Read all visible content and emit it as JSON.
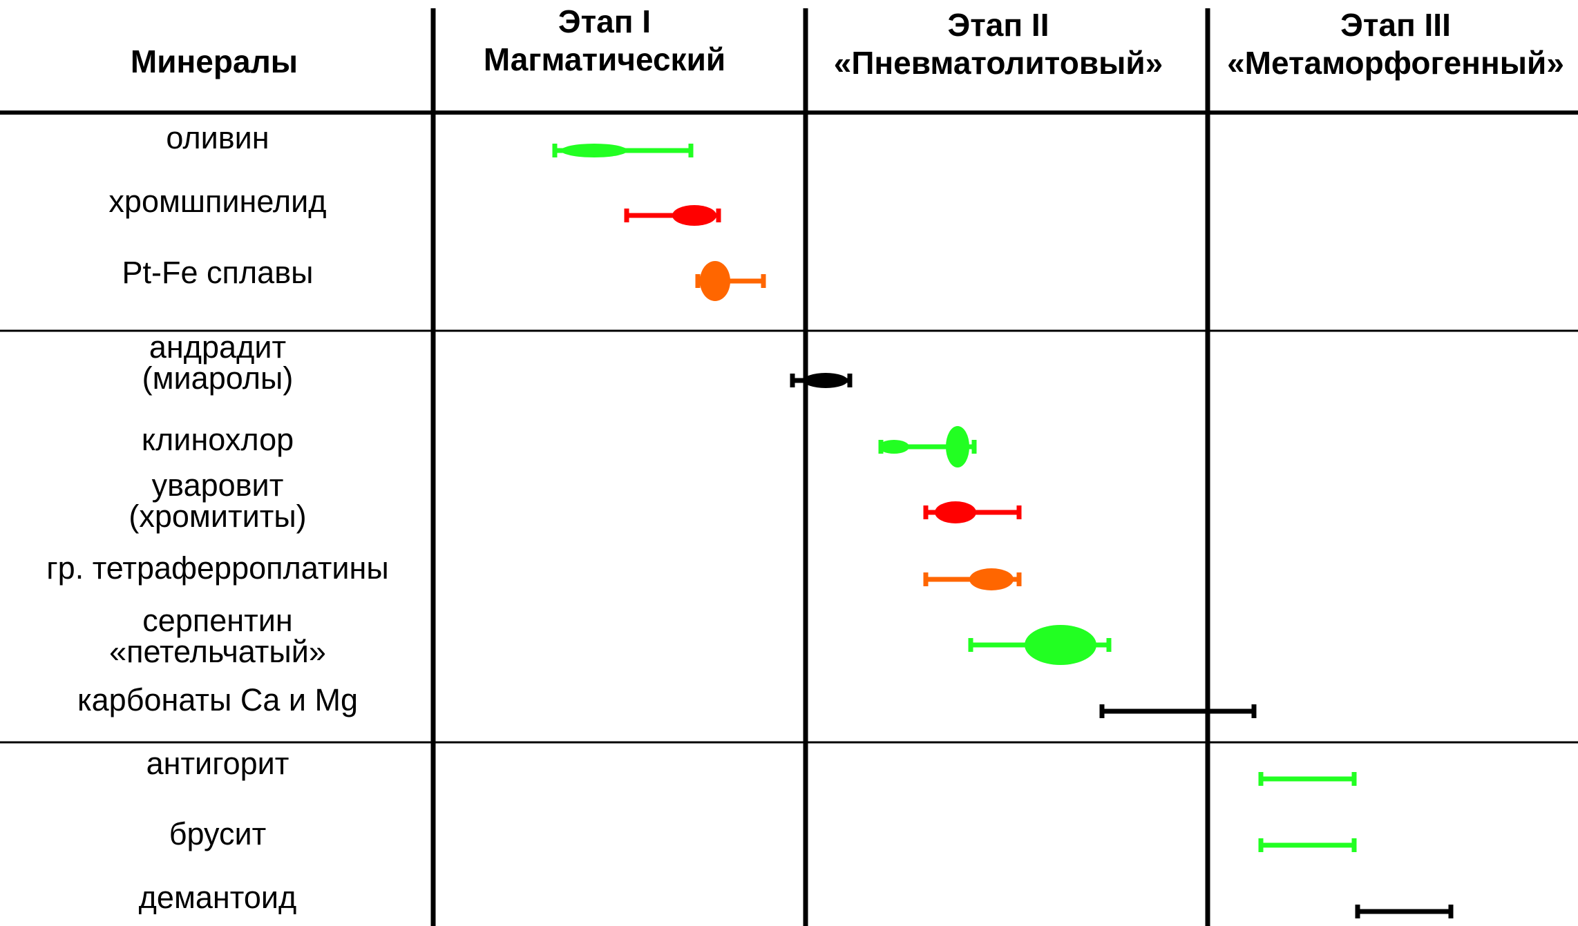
{
  "header": {
    "minerals_label": "Минералы",
    "stages": [
      {
        "line1": "Этап I",
        "line2": "Магматический"
      },
      {
        "line1": "Этап II",
        "line2": "«Пневматолитовый»"
      },
      {
        "line1": "Этап III",
        "line2": "«Метаморфогенный»"
      }
    ]
  },
  "colors": {
    "green": "#22ff22",
    "red": "#ff0000",
    "orange": "#ff6600",
    "black": "#000000"
  },
  "chart_data": {
    "type": "table",
    "minerals": [
      {
        "lines": [
          "оливин"
        ],
        "color": "green"
      },
      {
        "lines": [
          "хромшпинелид"
        ],
        "color": "red"
      },
      {
        "lines": [
          "Pt-Fe сплавы"
        ],
        "color": "orange"
      },
      {
        "lines": [
          "андрадит",
          "(миаролы)"
        ],
        "color": "black"
      },
      {
        "lines": [
          "клинохлор"
        ],
        "color": "green"
      },
      {
        "lines": [
          "уваровит",
          "(хромититы)"
        ],
        "color": "red"
      },
      {
        "lines": [
          "гр. тетраферроплатины"
        ],
        "color": "orange"
      },
      {
        "lines": [
          "серпентин",
          "«петельчатый»"
        ],
        "color": "green"
      },
      {
        "lines": [
          "карбонаты Ca и Mg"
        ],
        "color": "black"
      },
      {
        "lines": [
          "антигорит"
        ],
        "color": "green"
      },
      {
        "lines": [
          "брусит"
        ],
        "color": "green"
      },
      {
        "lines": [
          "демантоид"
        ],
        "color": "black"
      }
    ]
  }
}
